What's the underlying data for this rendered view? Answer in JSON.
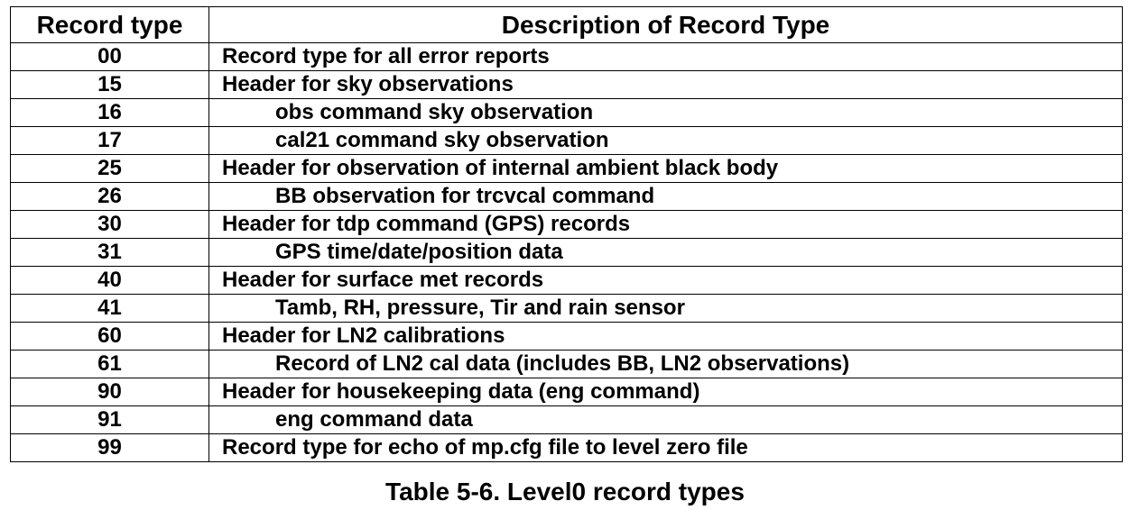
{
  "table": {
    "headers": {
      "code": "Record type",
      "description": "Description of Record Type"
    },
    "rows": [
      {
        "code": "00",
        "description": "Record type for all error reports",
        "indent": false
      },
      {
        "code": "15",
        "description": "Header for sky observations",
        "indent": false
      },
      {
        "code": "16",
        "description": "obs command sky observation",
        "indent": true
      },
      {
        "code": "17",
        "description": "cal21 command sky observation",
        "indent": true
      },
      {
        "code": "25",
        "description": "Header for observation of internal ambient black body",
        "indent": false
      },
      {
        "code": "26",
        "description": "BB observation for trcvcal command",
        "indent": true
      },
      {
        "code": "30",
        "description": "Header for tdp command (GPS) records",
        "indent": false
      },
      {
        "code": "31",
        "description": "GPS time/date/position data",
        "indent": true
      },
      {
        "code": "40",
        "description": "Header for surface met records",
        "indent": false
      },
      {
        "code": "41",
        "description": "Tamb, RH, pressure, Tir and rain sensor",
        "indent": true
      },
      {
        "code": "60",
        "description": "Header for LN2 calibrations",
        "indent": false
      },
      {
        "code": "61",
        "description": "Record of LN2 cal data (includes BB, LN2 observations)",
        "indent": true
      },
      {
        "code": "90",
        "description": "Header for housekeeping data (eng command)",
        "indent": false
      },
      {
        "code": "91",
        "description": "eng command data",
        "indent": true
      },
      {
        "code": "99",
        "description": "Record type for echo of mp.cfg file to level zero file",
        "indent": false
      }
    ]
  },
  "caption": "Table 5-6. Level0 record types"
}
